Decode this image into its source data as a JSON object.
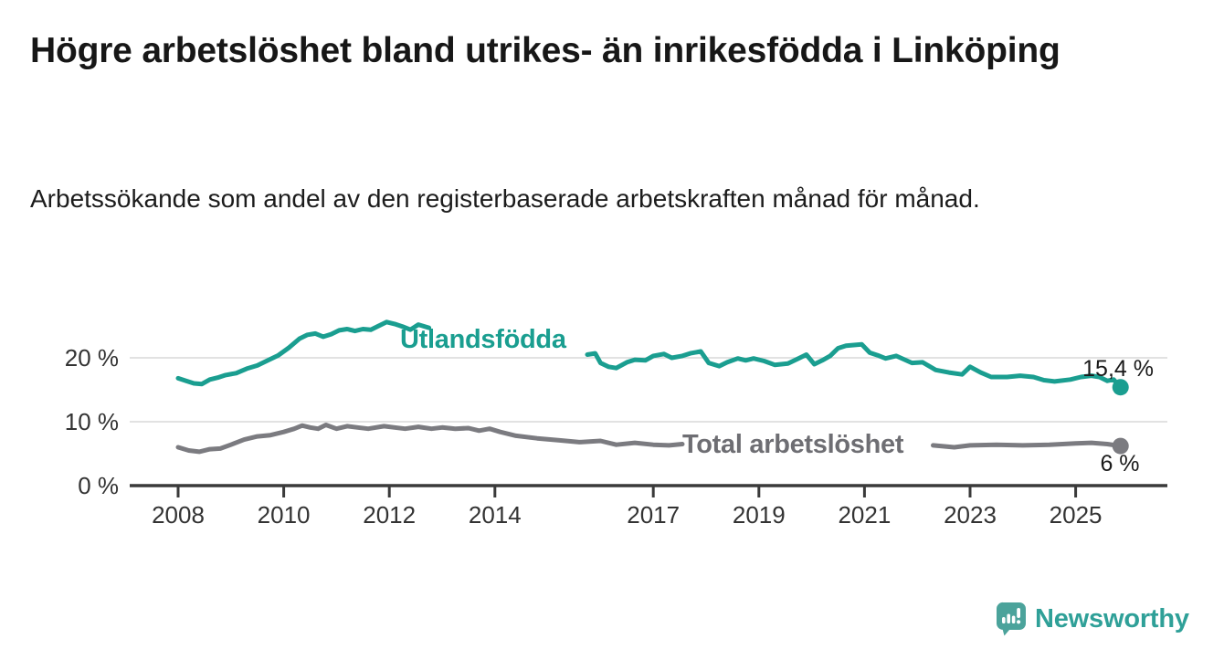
{
  "page": {
    "background": "#ffffff"
  },
  "header": {
    "title": "Högre arbetslöshet bland utrikes- än inrikesfödda i Linköping",
    "subtitle": "Arbetssökande som andel av den registerbaserade arbetskraften månad för månad."
  },
  "chart_data": {
    "type": "line",
    "title": "Högre arbetslöshet bland utrikes- än inrikesfödda i Linköping",
    "subtitle": "Arbetssökande som andel av den registerbaserade arbetskraften månad för månad.",
    "x_axis": {
      "tick_labels": [
        "2008",
        "2010",
        "2012",
        "2014",
        "2017",
        "2019",
        "2021",
        "2023",
        "2025"
      ],
      "tick_values": [
        2008,
        2010,
        2012,
        2014,
        2017,
        2019,
        2021,
        2023,
        2025
      ],
      "range": [
        2007.1,
        2026.7
      ]
    },
    "y_axis": {
      "tick_labels": [
        "0 %",
        "10 %",
        "20 %"
      ],
      "tick_values": [
        0,
        10,
        20
      ],
      "unit": "%",
      "ylim": [
        0,
        27.5
      ],
      "grid": true
    },
    "series": [
      {
        "name": "Utlandsfödda",
        "color": "#1a9e90",
        "end_value": 15.4,
        "end_value_label": "15,4 %",
        "note": "line interrupted by inline series label",
        "segments": [
          [
            [
              2008.0,
              16.8
            ],
            [
              2008.15,
              16.4
            ],
            [
              2008.3,
              16.0
            ],
            [
              2008.45,
              15.9
            ],
            [
              2008.6,
              16.6
            ],
            [
              2008.75,
              16.9
            ],
            [
              2008.9,
              17.3
            ],
            [
              2009.1,
              17.6
            ],
            [
              2009.3,
              18.3
            ],
            [
              2009.5,
              18.8
            ],
            [
              2009.7,
              19.6
            ],
            [
              2009.9,
              20.4
            ],
            [
              2010.1,
              21.6
            ],
            [
              2010.3,
              23.0
            ],
            [
              2010.45,
              23.6
            ],
            [
              2010.6,
              23.8
            ],
            [
              2010.75,
              23.3
            ],
            [
              2010.9,
              23.7
            ],
            [
              2011.05,
              24.3
            ],
            [
              2011.2,
              24.5
            ],
            [
              2011.35,
              24.2
            ],
            [
              2011.5,
              24.5
            ],
            [
              2011.65,
              24.4
            ],
            [
              2011.8,
              25.0
            ],
            [
              2011.95,
              25.6
            ],
            [
              2012.1,
              25.3
            ],
            [
              2012.25,
              24.9
            ],
            [
              2012.4,
              24.4
            ],
            [
              2012.55,
              25.2
            ],
            [
              2012.75,
              24.7
            ]
          ],
          [
            [
              2015.75,
              20.5
            ],
            [
              2015.9,
              20.7
            ],
            [
              2016.0,
              19.2
            ],
            [
              2016.15,
              18.6
            ],
            [
              2016.3,
              18.4
            ],
            [
              2016.5,
              19.3
            ],
            [
              2016.65,
              19.7
            ],
            [
              2016.85,
              19.6
            ],
            [
              2017.0,
              20.3
            ],
            [
              2017.2,
              20.6
            ],
            [
              2017.35,
              20.0
            ],
            [
              2017.55,
              20.3
            ],
            [
              2017.7,
              20.7
            ],
            [
              2017.9,
              21.0
            ],
            [
              2018.05,
              19.2
            ],
            [
              2018.25,
              18.7
            ],
            [
              2018.4,
              19.3
            ],
            [
              2018.6,
              19.9
            ],
            [
              2018.75,
              19.6
            ],
            [
              2018.9,
              19.9
            ],
            [
              2019.1,
              19.5
            ],
            [
              2019.3,
              18.9
            ],
            [
              2019.55,
              19.1
            ],
            [
              2019.75,
              19.9
            ],
            [
              2019.9,
              20.5
            ],
            [
              2020.05,
              19.0
            ],
            [
              2020.2,
              19.6
            ],
            [
              2020.35,
              20.3
            ],
            [
              2020.5,
              21.5
            ],
            [
              2020.65,
              21.9
            ],
            [
              2020.8,
              22.0
            ],
            [
              2020.95,
              22.1
            ],
            [
              2021.1,
              20.8
            ],
            [
              2021.25,
              20.4
            ],
            [
              2021.4,
              19.9
            ],
            [
              2021.6,
              20.3
            ],
            [
              2021.9,
              19.2
            ],
            [
              2022.1,
              19.3
            ],
            [
              2022.35,
              18.1
            ],
            [
              2022.6,
              17.7
            ],
            [
              2022.85,
              17.4
            ],
            [
              2023.0,
              18.6
            ],
            [
              2023.2,
              17.7
            ],
            [
              2023.4,
              17.0
            ],
            [
              2023.7,
              17.0
            ],
            [
              2023.95,
              17.2
            ],
            [
              2024.2,
              17.0
            ],
            [
              2024.4,
              16.5
            ],
            [
              2024.6,
              16.3
            ],
            [
              2024.9,
              16.6
            ],
            [
              2025.1,
              17.0
            ],
            [
              2025.3,
              17.2
            ],
            [
              2025.45,
              17.0
            ],
            [
              2025.6,
              16.4
            ],
            [
              2025.72,
              16.6
            ],
            [
              2025.85,
              15.4
            ]
          ]
        ]
      },
      {
        "name": "Total arbetslöshet",
        "color": "#7b7b80",
        "end_value": 6,
        "end_value_label": "6 %",
        "note": "line interrupted by inline series label",
        "segments": [
          [
            [
              2008.0,
              6.0
            ],
            [
              2008.2,
              5.5
            ],
            [
              2008.4,
              5.3
            ],
            [
              2008.6,
              5.7
            ],
            [
              2008.8,
              5.8
            ],
            [
              2009.0,
              6.4
            ],
            [
              2009.25,
              7.2
            ],
            [
              2009.5,
              7.7
            ],
            [
              2009.75,
              7.9
            ],
            [
              2010.0,
              8.4
            ],
            [
              2010.2,
              8.9
            ],
            [
              2010.35,
              9.4
            ],
            [
              2010.5,
              9.1
            ],
            [
              2010.65,
              8.9
            ],
            [
              2010.8,
              9.5
            ],
            [
              2011.0,
              8.9
            ],
            [
              2011.2,
              9.3
            ],
            [
              2011.4,
              9.1
            ],
            [
              2011.6,
              8.9
            ],
            [
              2011.9,
              9.3
            ],
            [
              2012.1,
              9.1
            ],
            [
              2012.3,
              8.9
            ],
            [
              2012.55,
              9.2
            ],
            [
              2012.8,
              8.9
            ],
            [
              2013.0,
              9.1
            ],
            [
              2013.25,
              8.9
            ],
            [
              2013.5,
              9.0
            ],
            [
              2013.7,
              8.6
            ],
            [
              2013.9,
              8.9
            ],
            [
              2014.1,
              8.4
            ],
            [
              2014.4,
              7.8
            ],
            [
              2014.8,
              7.4
            ],
            [
              2015.2,
              7.1
            ],
            [
              2015.6,
              6.8
            ],
            [
              2016.0,
              7.0
            ],
            [
              2016.3,
              6.4
            ],
            [
              2016.65,
              6.7
            ],
            [
              2017.0,
              6.4
            ],
            [
              2017.3,
              6.3
            ],
            [
              2017.55,
              6.5
            ]
          ],
          [
            [
              2022.3,
              6.3
            ],
            [
              2022.7,
              6.0
            ],
            [
              2023.0,
              6.3
            ],
            [
              2023.5,
              6.4
            ],
            [
              2024.0,
              6.3
            ],
            [
              2024.5,
              6.4
            ],
            [
              2025.0,
              6.6
            ],
            [
              2025.3,
              6.7
            ],
            [
              2025.6,
              6.5
            ],
            [
              2025.85,
              6.2
            ]
          ]
        ]
      }
    ],
    "legend_position": "inline-labels-on-lines",
    "colors": {
      "grid": "#d9d9d9",
      "axis": "#3a3a3a",
      "tick_text": "#333333",
      "annotation_text": "#1a1a1a",
      "series_label_gray": "#6e6e73"
    }
  },
  "branding": {
    "logo_text": "Newsworthy",
    "logo_icon": "bar-chart-speech-bubble-icon",
    "logo_icon_color": "#4ba39b",
    "logo_text_color": "#2fa098"
  }
}
